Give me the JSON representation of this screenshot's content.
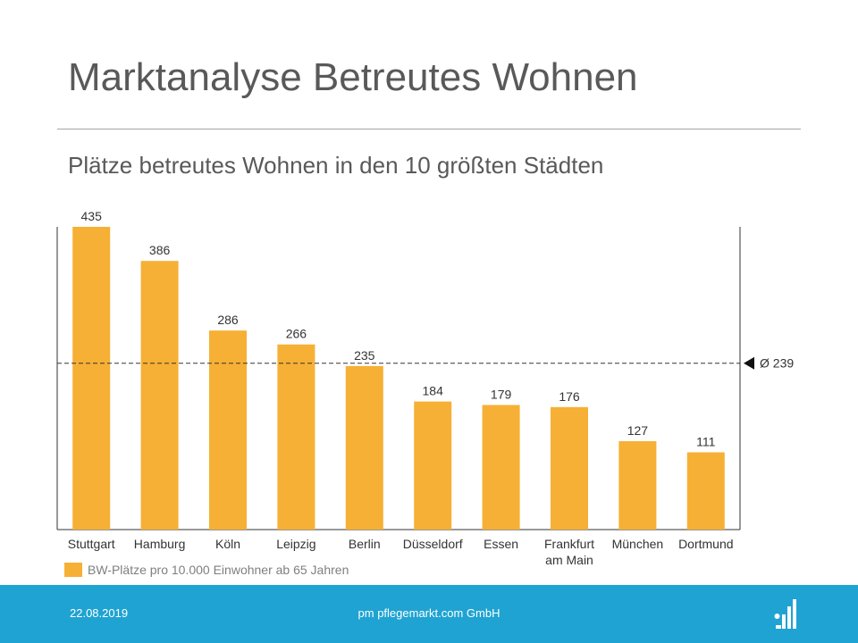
{
  "header": {
    "title": "Marktanalyse Betreutes Wohnen",
    "subtitle": "Plätze betreutes Wohnen in den 10 größten Städten"
  },
  "chart_data": {
    "type": "bar",
    "categories": [
      "Stuttgart",
      "Hamburg",
      "Köln",
      "Leipzig",
      "Berlin",
      "Düsseldorf",
      "Essen",
      "Frankfurt am Main",
      "München",
      "Dortmund"
    ],
    "category_lines": [
      [
        "Stuttgart"
      ],
      [
        "Hamburg"
      ],
      [
        "Köln"
      ],
      [
        "Leipzig"
      ],
      [
        "Berlin"
      ],
      [
        "Düsseldorf"
      ],
      [
        "Essen"
      ],
      [
        "Frankfurt",
        "am Main"
      ],
      [
        "München"
      ],
      [
        "Dortmund"
      ]
    ],
    "values": [
      435,
      386,
      286,
      266,
      235,
      184,
      179,
      176,
      127,
      111
    ],
    "data_labels": [
      "435",
      "386",
      "286",
      "266",
      "235",
      "184",
      "179",
      "176",
      "127",
      "111"
    ],
    "series": [
      {
        "name": "BW-Plätze pro 10.000 Einwohner ab 65 Jahren",
        "values": [
          435,
          386,
          286,
          266,
          235,
          184,
          179,
          176,
          127,
          111
        ]
      }
    ],
    "average": {
      "value": 239,
      "label": "Ø 239"
    },
    "ylim": [
      0,
      435
    ],
    "grid": false,
    "legend_position": "bottom-left",
    "bar_color": "#f6b035"
  },
  "footer": {
    "date": "22.08.2019",
    "company": "pm pflegemarkt.com GmbH",
    "logo_icon": "pflegemarkt-logo-icon"
  },
  "colors": {
    "footer_bg": "#1fa3d2",
    "bar": "#f6b035",
    "text": "#595959"
  }
}
